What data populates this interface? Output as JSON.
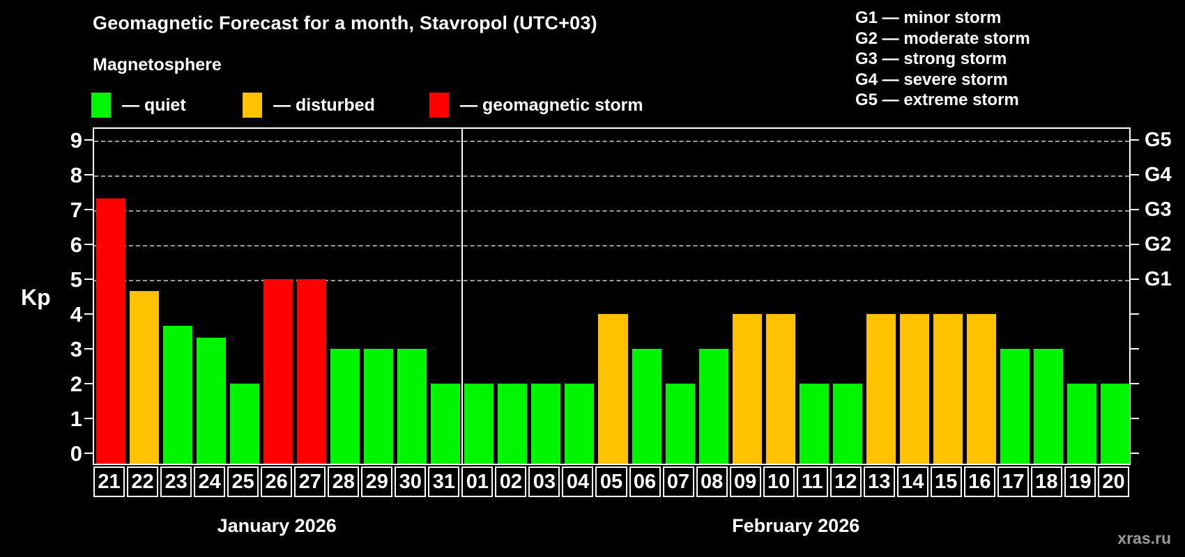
{
  "title": "Geomagnetic Forecast for a month, Stavropol (UTC+03)",
  "magnetosphere": {
    "heading": "Magnetosphere",
    "items": [
      {
        "label": "— quiet",
        "status": "quiet"
      },
      {
        "label": "— disturbed",
        "status": "disturbed"
      },
      {
        "label": "— geomagnetic storm",
        "status": "storm"
      }
    ]
  },
  "g_scale_legend": {
    "lines": [
      "G1 — minor storm",
      "G2 — moderate storm",
      "G3 — strong storm",
      "G4 — severe storm",
      "G5 — extreme storm"
    ]
  },
  "watermark": "xras.ru",
  "chart_data": {
    "type": "bar",
    "title": "Geomagnetic Forecast for a month, Stavropol (UTC+03)",
    "ylabel": "Kp",
    "ylim": [
      0,
      9
    ],
    "y_ticks": [
      0,
      1,
      2,
      3,
      4,
      5,
      6,
      7,
      8,
      9
    ],
    "grid": "horizontal dashed lines at Kp 5–9 only",
    "legend_position": "top-left",
    "status_colors": {
      "quiet": "#00f500",
      "disturbed": "#ffc200",
      "storm": "#ff0000"
    },
    "right_axis_labels": [
      {
        "kp": 5,
        "label": "G1"
      },
      {
        "kp": 6,
        "label": "G2"
      },
      {
        "kp": 7,
        "label": "G3"
      },
      {
        "kp": 8,
        "label": "G4"
      },
      {
        "kp": 9,
        "label": "G5"
      }
    ],
    "months": [
      {
        "label": "January 2026",
        "days": [
          {
            "date": "21",
            "kp": 7.33,
            "status": "storm"
          },
          {
            "date": "22",
            "kp": 4.67,
            "status": "disturbed"
          },
          {
            "date": "23",
            "kp": 3.67,
            "status": "quiet"
          },
          {
            "date": "24",
            "kp": 3.33,
            "status": "quiet"
          },
          {
            "date": "25",
            "kp": 2,
            "status": "quiet"
          },
          {
            "date": "26",
            "kp": 5,
            "status": "storm"
          },
          {
            "date": "27",
            "kp": 5,
            "status": "storm"
          },
          {
            "date": "28",
            "kp": 3,
            "status": "quiet"
          },
          {
            "date": "29",
            "kp": 3,
            "status": "quiet"
          },
          {
            "date": "30",
            "kp": 3,
            "status": "quiet"
          },
          {
            "date": "31",
            "kp": 2,
            "status": "quiet"
          }
        ]
      },
      {
        "label": "February 2026",
        "days": [
          {
            "date": "01",
            "kp": 2,
            "status": "quiet"
          },
          {
            "date": "02",
            "kp": 2,
            "status": "quiet"
          },
          {
            "date": "03",
            "kp": 2,
            "status": "quiet"
          },
          {
            "date": "04",
            "kp": 2,
            "status": "quiet"
          },
          {
            "date": "05",
            "kp": 4,
            "status": "disturbed"
          },
          {
            "date": "06",
            "kp": 3,
            "status": "quiet"
          },
          {
            "date": "07",
            "kp": 2,
            "status": "quiet"
          },
          {
            "date": "08",
            "kp": 3,
            "status": "quiet"
          },
          {
            "date": "09",
            "kp": 4,
            "status": "disturbed"
          },
          {
            "date": "10",
            "kp": 4,
            "status": "disturbed"
          },
          {
            "date": "11",
            "kp": 2,
            "status": "quiet"
          },
          {
            "date": "12",
            "kp": 2,
            "status": "quiet"
          },
          {
            "date": "13",
            "kp": 4,
            "status": "disturbed"
          },
          {
            "date": "14",
            "kp": 4,
            "status": "disturbed"
          },
          {
            "date": "15",
            "kp": 4,
            "status": "disturbed"
          },
          {
            "date": "16",
            "kp": 4,
            "status": "disturbed"
          },
          {
            "date": "17",
            "kp": 3,
            "status": "quiet"
          },
          {
            "date": "18",
            "kp": 3,
            "status": "quiet"
          },
          {
            "date": "19",
            "kp": 2,
            "status": "quiet"
          },
          {
            "date": "20",
            "kp": 2,
            "status": "quiet"
          }
        ]
      }
    ]
  }
}
